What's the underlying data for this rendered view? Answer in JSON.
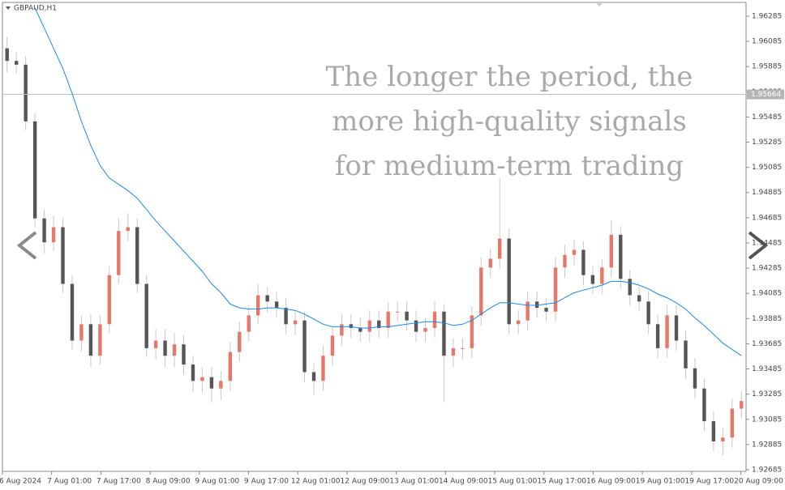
{
  "chart_data": {
    "type": "candlestick",
    "symbol": "GBPAUD,H1",
    "overlay_text": [
      "The longer the period, the",
      "more high-quality signals",
      "for medium-term trading"
    ],
    "x_labels": [
      "6 Aug 2024",
      "7 Aug 01:00",
      "7 Aug 17:00",
      "8 Aug 09:00",
      "9 Aug 01:00",
      "9 Aug 17:00",
      "12 Aug 01:00",
      "12 Aug 09:00",
      "13 Aug 01:00",
      "14 Aug 09:00",
      "15 Aug 01:00",
      "15 Aug 17:00",
      "16 Aug 09:00",
      "19 Aug 01:00",
      "19 Aug 17:00",
      "20 Aug 09:00"
    ],
    "ylim": [
      1.92672,
      1.96394
    ],
    "yticks": [
      1.96285,
      1.96085,
      1.95885,
      1.95685,
      1.95485,
      1.95285,
      1.95085,
      1.94885,
      1.94685,
      1.94485,
      1.94285,
      1.94085,
      1.93885,
      1.93685,
      1.93485,
      1.93285,
      1.93085,
      1.92885,
      1.92685
    ],
    "current_price": 1.95664,
    "bull_color": "#e5776b",
    "bear_color": "#565656",
    "candles": {
      "open": [
        1.9603,
        1.9593,
        1.959,
        1.9545,
        1.9468,
        1.9449,
        1.9461,
        1.9416,
        1.9371,
        1.9384,
        1.9359,
        1.9384,
        1.9423,
        1.9458,
        1.9461,
        1.9416,
        1.9365,
        1.9371,
        1.9359,
        1.9368,
        1.9352,
        1.9339,
        1.9342,
        1.9333,
        1.9339,
        1.9362,
        1.9378,
        1.9391,
        1.9407,
        1.9402,
        1.9397,
        1.9384,
        1.9387,
        1.9346,
        1.9339,
        1.9359,
        1.9375,
        1.9384,
        1.9381,
        1.9378,
        1.9387,
        1.9381,
        1.9394,
        1.9394,
        1.9387,
        1.9378,
        1.9381,
        1.9394,
        1.9359,
        1.9365,
        1.9365,
        1.9391,
        1.9429,
        1.9436,
        1.9452,
        1.9384,
        1.9387,
        1.9402,
        1.9397,
        1.9394,
        1.9429,
        1.9439,
        1.9443,
        1.9423,
        1.9416,
        1.9429,
        1.9455,
        1.942,
        1.9407,
        1.9402,
        1.9384,
        1.9365,
        1.9391,
        1.9371,
        1.9349,
        1.9333,
        1.9307,
        1.9291,
        1.9294,
        1.9317
      ],
      "high": [
        1.9612,
        1.96,
        1.9597,
        1.9552,
        1.9475,
        1.947,
        1.9468,
        1.9423,
        1.9391,
        1.9392,
        1.9391,
        1.943,
        1.9468,
        1.9472,
        1.9468,
        1.9423,
        1.938,
        1.938,
        1.9377,
        1.9375,
        1.9359,
        1.935,
        1.935,
        1.9347,
        1.937,
        1.9386,
        1.9399,
        1.9416,
        1.9414,
        1.941,
        1.9405,
        1.9395,
        1.9394,
        1.9353,
        1.9367,
        1.9382,
        1.9392,
        1.9392,
        1.9389,
        1.9395,
        1.9395,
        1.9402,
        1.9402,
        1.9402,
        1.9395,
        1.9389,
        1.9402,
        1.94,
        1.9373,
        1.9373,
        1.9398,
        1.9437,
        1.9444,
        1.95,
        1.946,
        1.9395,
        1.941,
        1.941,
        1.9405,
        1.9437,
        1.9447,
        1.9451,
        1.945,
        1.943,
        1.9436,
        1.9466,
        1.9462,
        1.9427,
        1.9414,
        1.941,
        1.9392,
        1.9399,
        1.9399,
        1.9379,
        1.9357,
        1.9341,
        1.9315,
        1.9302,
        1.9325,
        1.9331
      ],
      "low": [
        1.9584,
        1.9583,
        1.9538,
        1.9461,
        1.944,
        1.9442,
        1.9409,
        1.9364,
        1.9362,
        1.935,
        1.9352,
        1.9377,
        1.9416,
        1.945,
        1.9409,
        1.9358,
        1.9356,
        1.935,
        1.935,
        1.9344,
        1.933,
        1.933,
        1.9322,
        1.9324,
        1.9331,
        1.9354,
        1.937,
        1.9384,
        1.9393,
        1.9389,
        1.9376,
        1.9375,
        1.9338,
        1.9328,
        1.9331,
        1.9351,
        1.9367,
        1.9373,
        1.937,
        1.937,
        1.9373,
        1.9373,
        1.9386,
        1.9379,
        1.937,
        1.937,
        1.9373,
        1.9322,
        1.935,
        1.9356,
        1.9357,
        1.9383,
        1.9421,
        1.9428,
        1.9376,
        1.9376,
        1.9379,
        1.9389,
        1.9386,
        1.9386,
        1.9421,
        1.9431,
        1.9415,
        1.9408,
        1.9408,
        1.9421,
        1.9412,
        1.9399,
        1.9394,
        1.9376,
        1.9357,
        1.9357,
        1.9363,
        1.9341,
        1.9325,
        1.9299,
        1.9283,
        1.928,
        1.9286,
        1.9309
      ],
      "close": [
        1.9593,
        1.959,
        1.9545,
        1.9468,
        1.9449,
        1.9461,
        1.9416,
        1.9371,
        1.9384,
        1.9359,
        1.9384,
        1.9423,
        1.9458,
        1.9461,
        1.9416,
        1.9365,
        1.9371,
        1.9359,
        1.9368,
        1.9352,
        1.9339,
        1.9342,
        1.9333,
        1.9339,
        1.9362,
        1.9378,
        1.9391,
        1.9407,
        1.9402,
        1.9397,
        1.9384,
        1.9387,
        1.9346,
        1.9339,
        1.9359,
        1.9375,
        1.9384,
        1.9381,
        1.9378,
        1.9387,
        1.9381,
        1.9394,
        1.9394,
        1.9387,
        1.9378,
        1.9381,
        1.9394,
        1.9359,
        1.9365,
        1.9365,
        1.9391,
        1.9429,
        1.9436,
        1.9452,
        1.9384,
        1.9387,
        1.9402,
        1.9397,
        1.9394,
        1.9429,
        1.9439,
        1.9443,
        1.9423,
        1.9416,
        1.9429,
        1.9455,
        1.942,
        1.9407,
        1.9402,
        1.9384,
        1.9365,
        1.9391,
        1.9371,
        1.9349,
        1.9333,
        1.9307,
        1.9291,
        1.9294,
        1.9317,
        1.9323
      ]
    },
    "moving_average": {
      "color": "#1e88e5",
      "values": [
        null,
        null,
        null,
        1.9635,
        1.9619,
        1.9603,
        1.9587,
        1.9567,
        1.9545,
        1.9526,
        1.951,
        1.95,
        1.9495,
        1.949,
        1.9484,
        1.9475,
        1.9466,
        1.9458,
        1.945,
        1.9442,
        1.9434,
        1.9426,
        1.9416,
        1.9409,
        1.94,
        1.9397,
        1.9396,
        1.9396,
        1.9397,
        1.9397,
        1.9396,
        1.9395,
        1.9392,
        1.9388,
        1.9384,
        1.9382,
        1.9382,
        1.9382,
        1.9381,
        1.9381,
        1.9382,
        1.9382,
        1.9383,
        1.9384,
        1.9385,
        1.9386,
        1.9386,
        1.9385,
        1.9383,
        1.9384,
        1.9387,
        1.9392,
        1.9397,
        1.9401,
        1.9401,
        1.94,
        1.9399,
        1.9399,
        1.94,
        1.9401,
        1.9405,
        1.9409,
        1.9411,
        1.9413,
        1.9415,
        1.9418,
        1.9418,
        1.9417,
        1.9415,
        1.9412,
        1.9408,
        1.9405,
        1.9401,
        1.9396,
        1.9389,
        1.9383,
        1.9376,
        1.9369,
        1.9364,
        1.9359
      ]
    }
  }
}
